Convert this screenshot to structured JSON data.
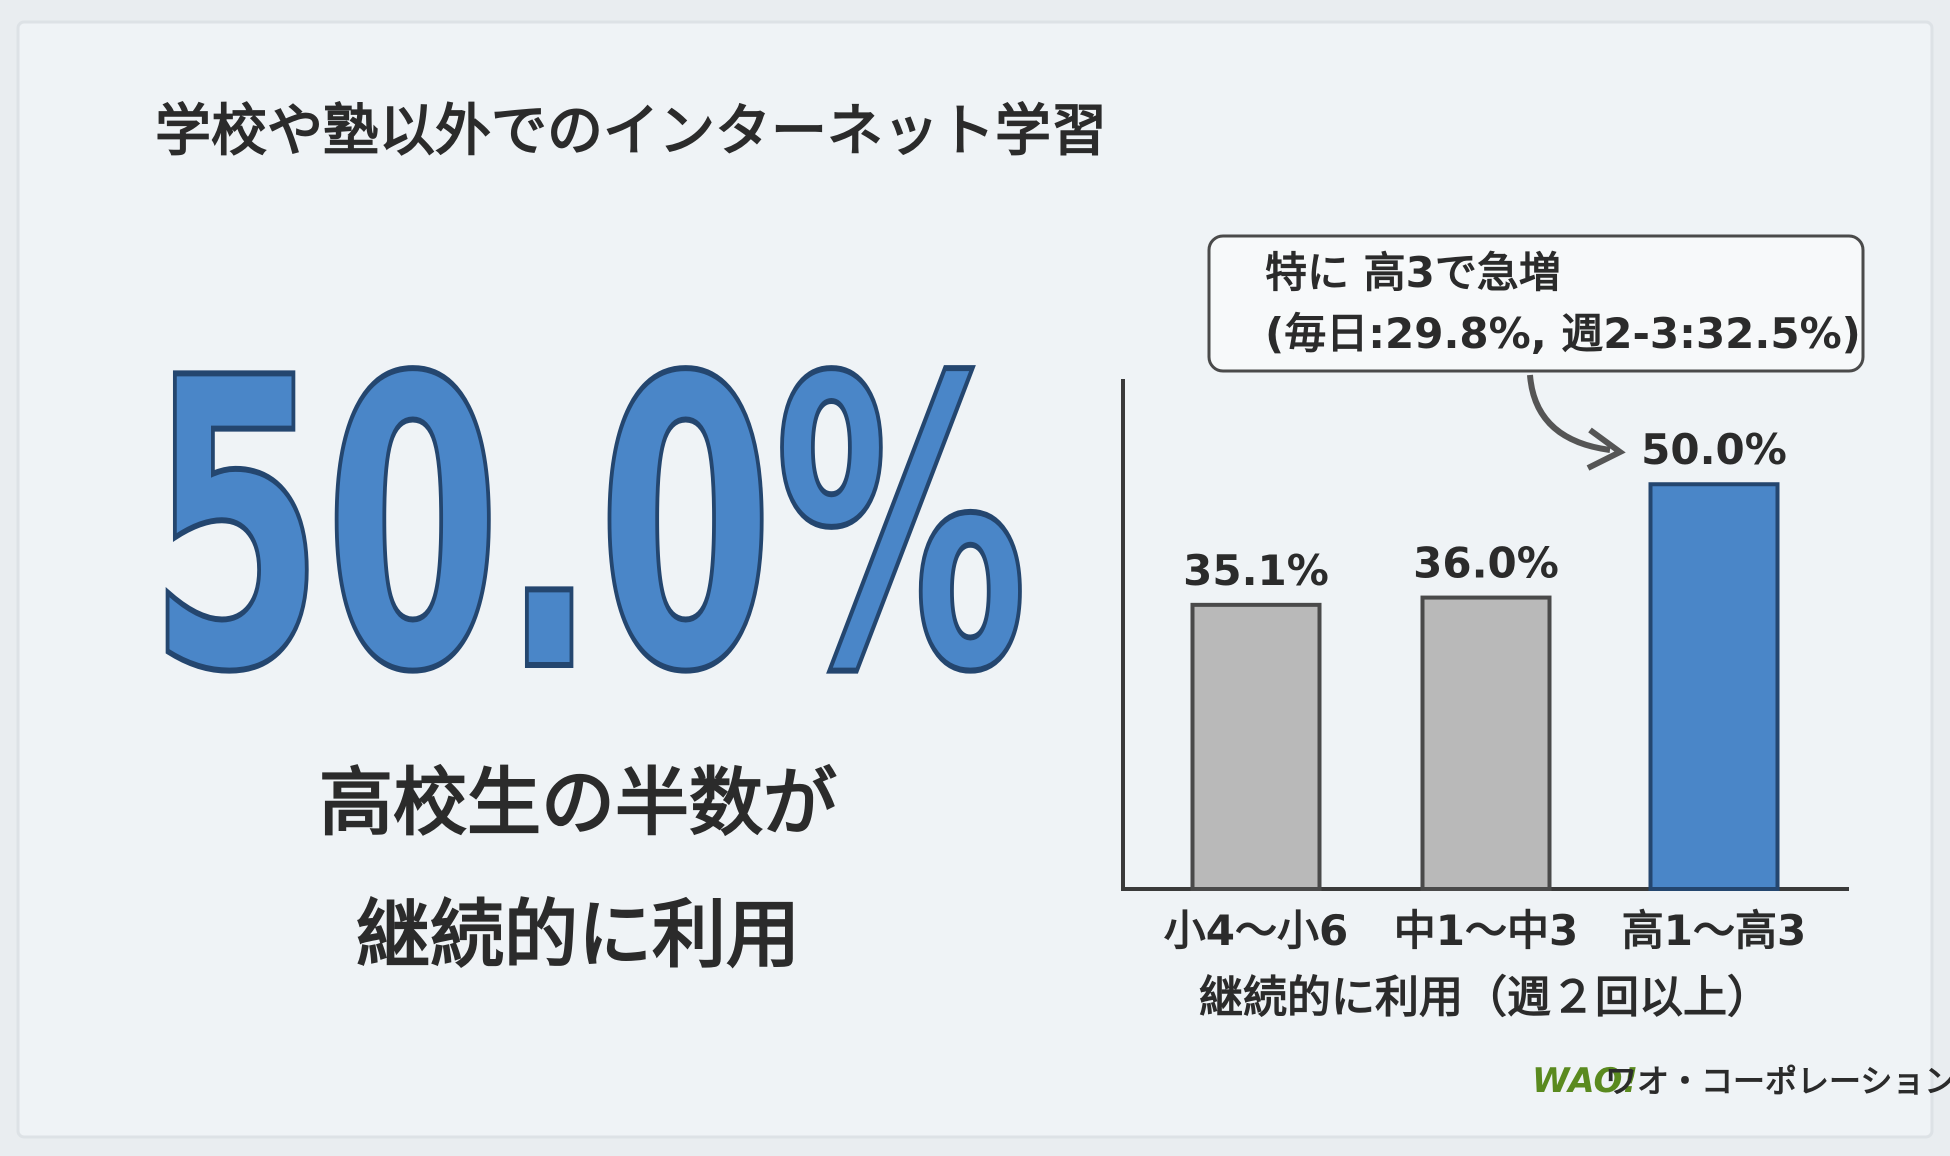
{
  "header": {
    "title": "学校や塾以外でのインターネット学習"
  },
  "highlight": {
    "stat": "50.0%",
    "caption_line1": "高校生の半数が",
    "caption_line2": "継続的に利用"
  },
  "chart_data": {
    "type": "bar",
    "categories": [
      "小4〜小6",
      "中1〜中3",
      "高1〜高3"
    ],
    "values": [
      35.1,
      36.0,
      50.0
    ],
    "value_labels": [
      "35.1%",
      "36.0%",
      "50.0%"
    ],
    "colors": [
      "#b9b9b9",
      "#b9b9b9",
      "#4a86c8"
    ],
    "ylim": [
      0,
      63
    ],
    "x_label": "継続的に利用（週２回以上）",
    "annotation": {
      "line1": "特に 高3で急増",
      "line2": "(毎日:29.8%, 週2-3:32.5%)"
    }
  },
  "footer": {
    "logo": "WAO!",
    "company": "ワオ・コーポレーション"
  }
}
